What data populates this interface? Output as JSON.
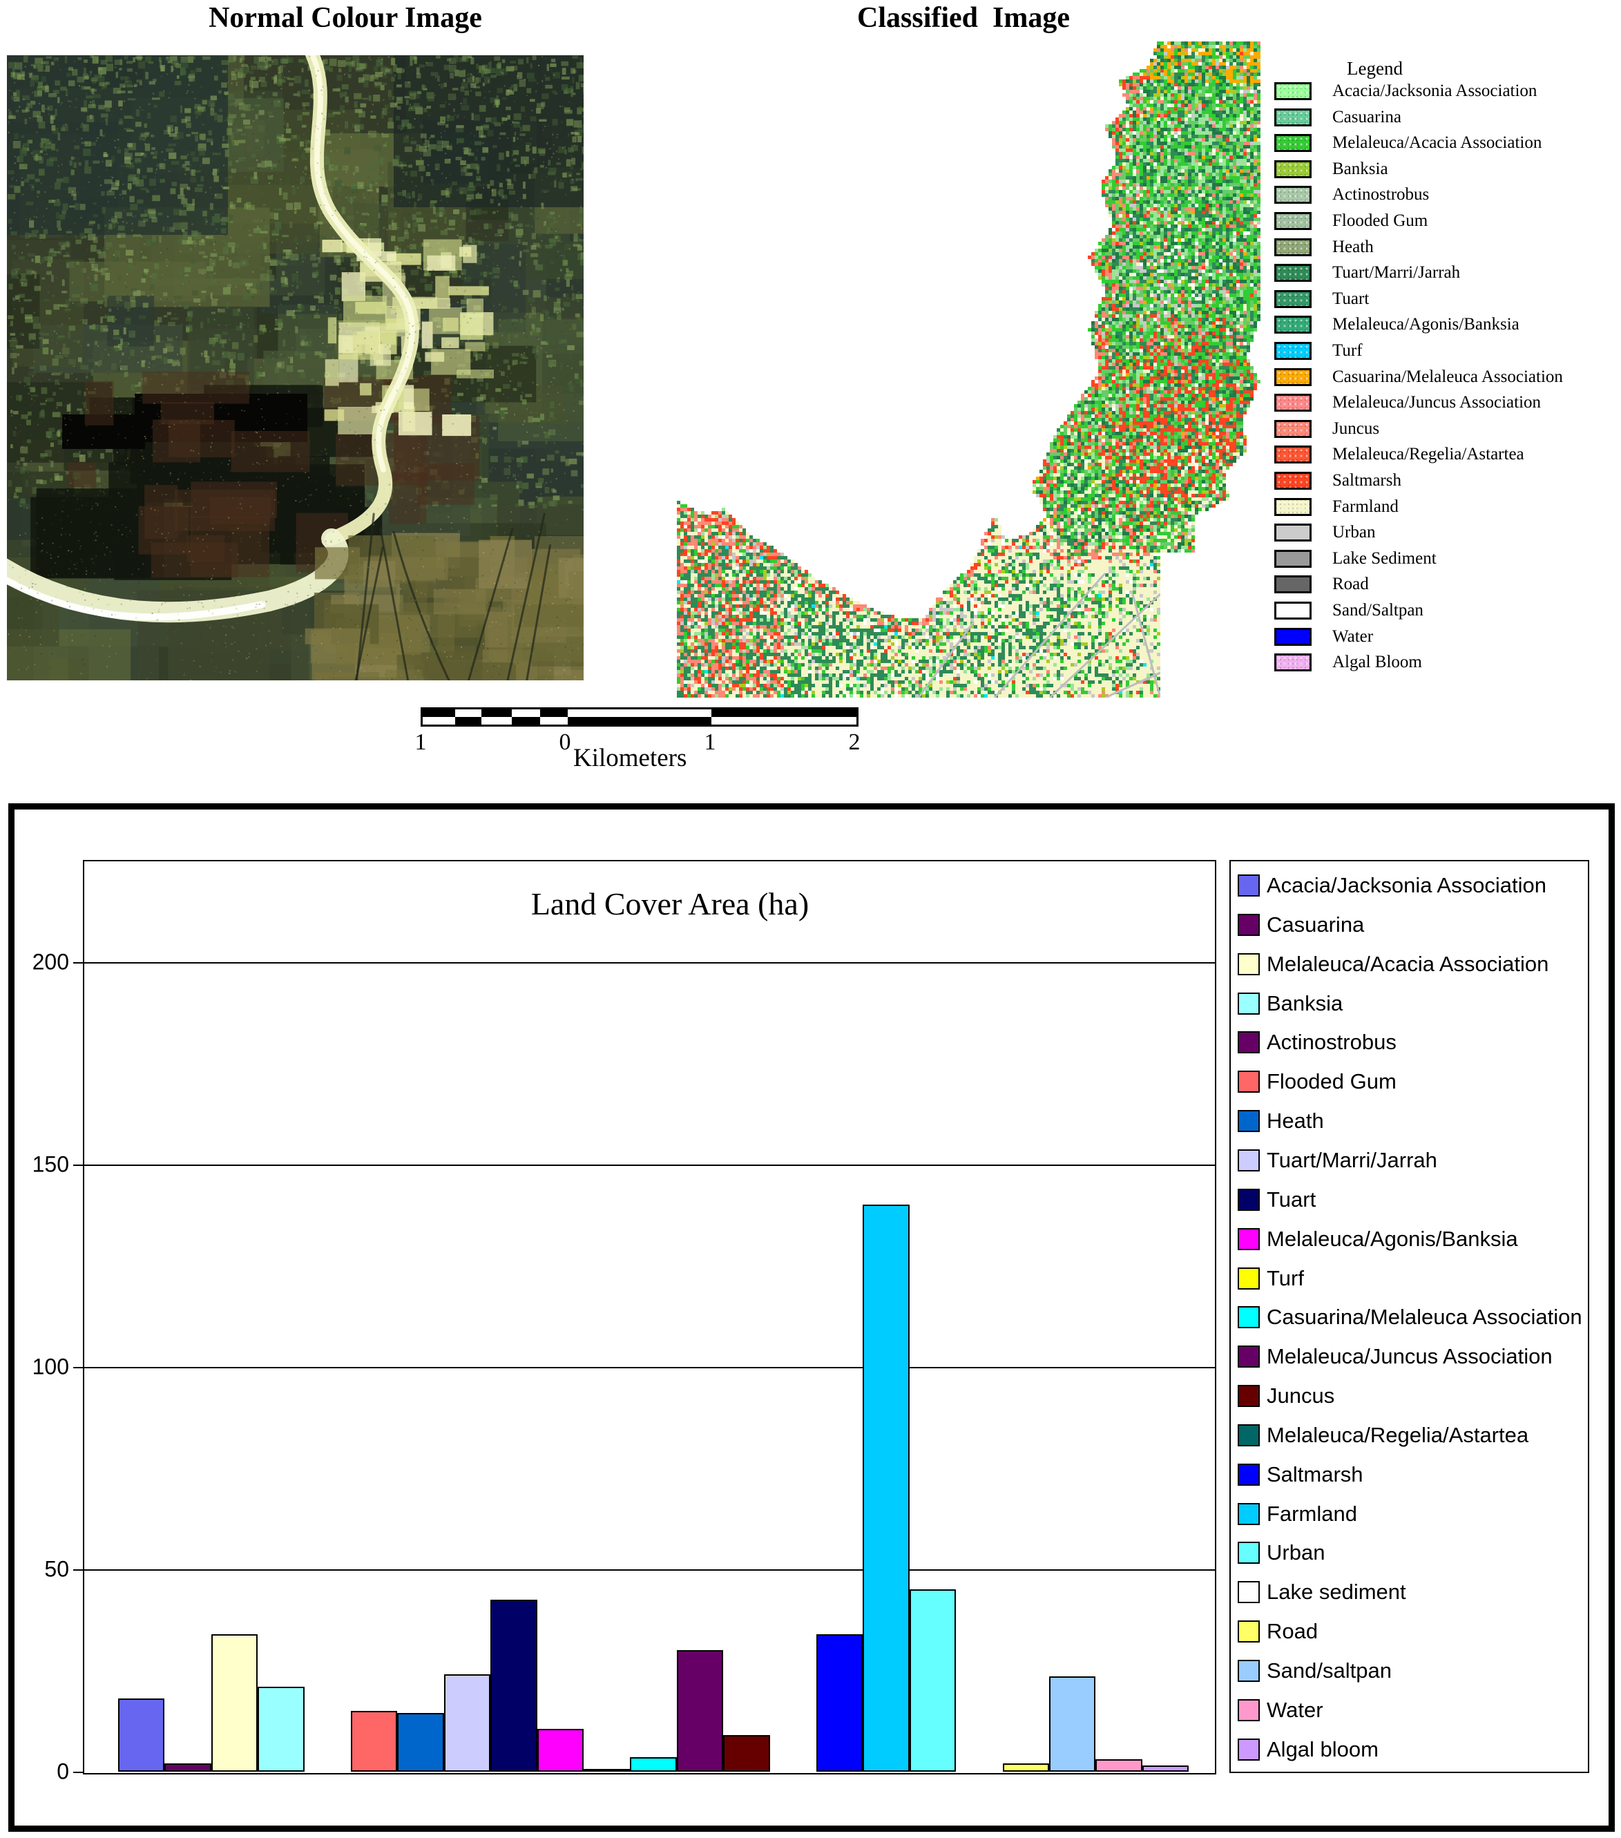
{
  "top": {
    "normal_image_title": "Normal Colour Image",
    "classified_image_title": "Classified  Image"
  },
  "map_legend": {
    "title": "Legend",
    "items": [
      {
        "label": "Acacia/Jacksonia Association",
        "color": "#99FF99",
        "dotted": true
      },
      {
        "label": "Casuarina",
        "color": "#66CC99",
        "dotted": true
      },
      {
        "label": "Melaleuca/Acacia Association",
        "color": "#33CC33",
        "dotted": true
      },
      {
        "label": "Banksia",
        "color": "#99CC33",
        "dotted": true
      },
      {
        "label": "Actinostrobus",
        "color": "#A8C8A8",
        "dotted": true
      },
      {
        "label": "Flooded Gum",
        "color": "#A0C0A0",
        "dotted": true
      },
      {
        "label": "Heath",
        "color": "#8FA875",
        "dotted": true
      },
      {
        "label": "Tuart/Marri/Jarrah",
        "color": "#2E8B57",
        "dotted": true
      },
      {
        "label": "Tuart",
        "color": "#339966",
        "dotted": true
      },
      {
        "label": "Melaleuca/Agonis/Banksia",
        "color": "#33AA77",
        "dotted": true
      },
      {
        "label": "Turf",
        "color": "#00CCFF",
        "dotted": true
      },
      {
        "label": "Casuarina/Melaleuca Association",
        "color": "#FFAA00",
        "dotted": true
      },
      {
        "label": "Melaleuca/Juncus Association",
        "color": "#FF8888",
        "dotted": true
      },
      {
        "label": "Juncus",
        "color": "#FF8877",
        "dotted": true
      },
      {
        "label": "Melaleuca/Regelia/Astartea",
        "color": "#FF5533",
        "dotted": true
      },
      {
        "label": "Saltmarsh",
        "color": "#FF4422",
        "dotted": true
      },
      {
        "label": "Farmland",
        "color": "#F5F5C8",
        "dotted": true
      },
      {
        "label": "Urban",
        "color": "#CCCCCC",
        "dotted": false
      },
      {
        "label": "Lake Sediment",
        "color": "#999999",
        "dotted": false
      },
      {
        "label": "Road",
        "color": "#666666",
        "dotted": false
      },
      {
        "label": "Sand/Saltpan",
        "color": "#FFFFFF",
        "dotted": false
      },
      {
        "label": "Water",
        "color": "#0000FF",
        "dotted": false
      },
      {
        "label": "Algal Bloom",
        "color": "#F0B0F0",
        "dotted": true
      }
    ]
  },
  "scale_bar": {
    "tick_labels": [
      "1",
      "0",
      "1",
      "2"
    ],
    "unit_label": "Kilometers"
  },
  "chart_data": {
    "type": "bar",
    "title": "Land Cover Area (ha)",
    "xlabel": "",
    "ylabel": "",
    "ylim": [
      0,
      225
    ],
    "y_ticks": [
      0,
      50,
      100,
      150,
      200
    ],
    "grid": "horizontal",
    "legend_position": "right",
    "categories": [
      "Acacia/Jacksonia  Association",
      "Casuarina",
      "Melaleuca/Acacia Association",
      "Banksia",
      "Actinostrobus",
      "Flooded Gum",
      "Heath",
      "Tuart/Marri/Jarrah",
      "Tuart",
      "Melaleuca/Agonis/Banksia",
      "Turf",
      "Casuarina/Melaleuca Association",
      "Melaleuca/Juncus Association",
      "Juncus",
      "Melaleuca/Regelia/Astartea",
      "Saltmarsh",
      "Farmland",
      "Urban",
      "Lake sediment",
      "Road",
      "Sand/saltpan",
      "Water",
      "Algal bloom"
    ],
    "values": [
      18,
      2,
      34,
      21,
      0,
      15,
      14.5,
      24,
      42.5,
      10.5,
      0.7,
      3.5,
      30,
      9,
      0,
      34,
      140,
      45,
      0,
      2,
      23.5,
      3,
      1.5
    ],
    "colors": [
      "#6666F0",
      "#660066",
      "#FFFFCC",
      "#99FFFF",
      "#660066",
      "#FF6666",
      "#0066CC",
      "#CCCCFF",
      "#000066",
      "#FF00FF",
      "#FFFF00",
      "#00FFFF",
      "#660066",
      "#660000",
      "#006666",
      "#0000FF",
      "#00CCFF",
      "#66FFFF",
      "#FFFFFF",
      "#FFFF66",
      "#99CCFF",
      "#FF99CC",
      "#CC99FF"
    ]
  },
  "layout_colors": {
    "frame": "#000000",
    "classified_palette": {
      "pale_yellow": "#F5F5C8",
      "dark_green": "#2E8B57",
      "bright_green": "#33CC33",
      "light_green": "#99E699",
      "mid_green": "#66CC66",
      "deep_green": "#1F7A46",
      "salmon": "#FF8877",
      "red_orange": "#FF4422",
      "orange": "#FFAA00",
      "gray": "#C8C8C8",
      "white": "#FFFFFF",
      "cyan": "#00E5FF",
      "yellow_green": "#AACC22"
    }
  }
}
